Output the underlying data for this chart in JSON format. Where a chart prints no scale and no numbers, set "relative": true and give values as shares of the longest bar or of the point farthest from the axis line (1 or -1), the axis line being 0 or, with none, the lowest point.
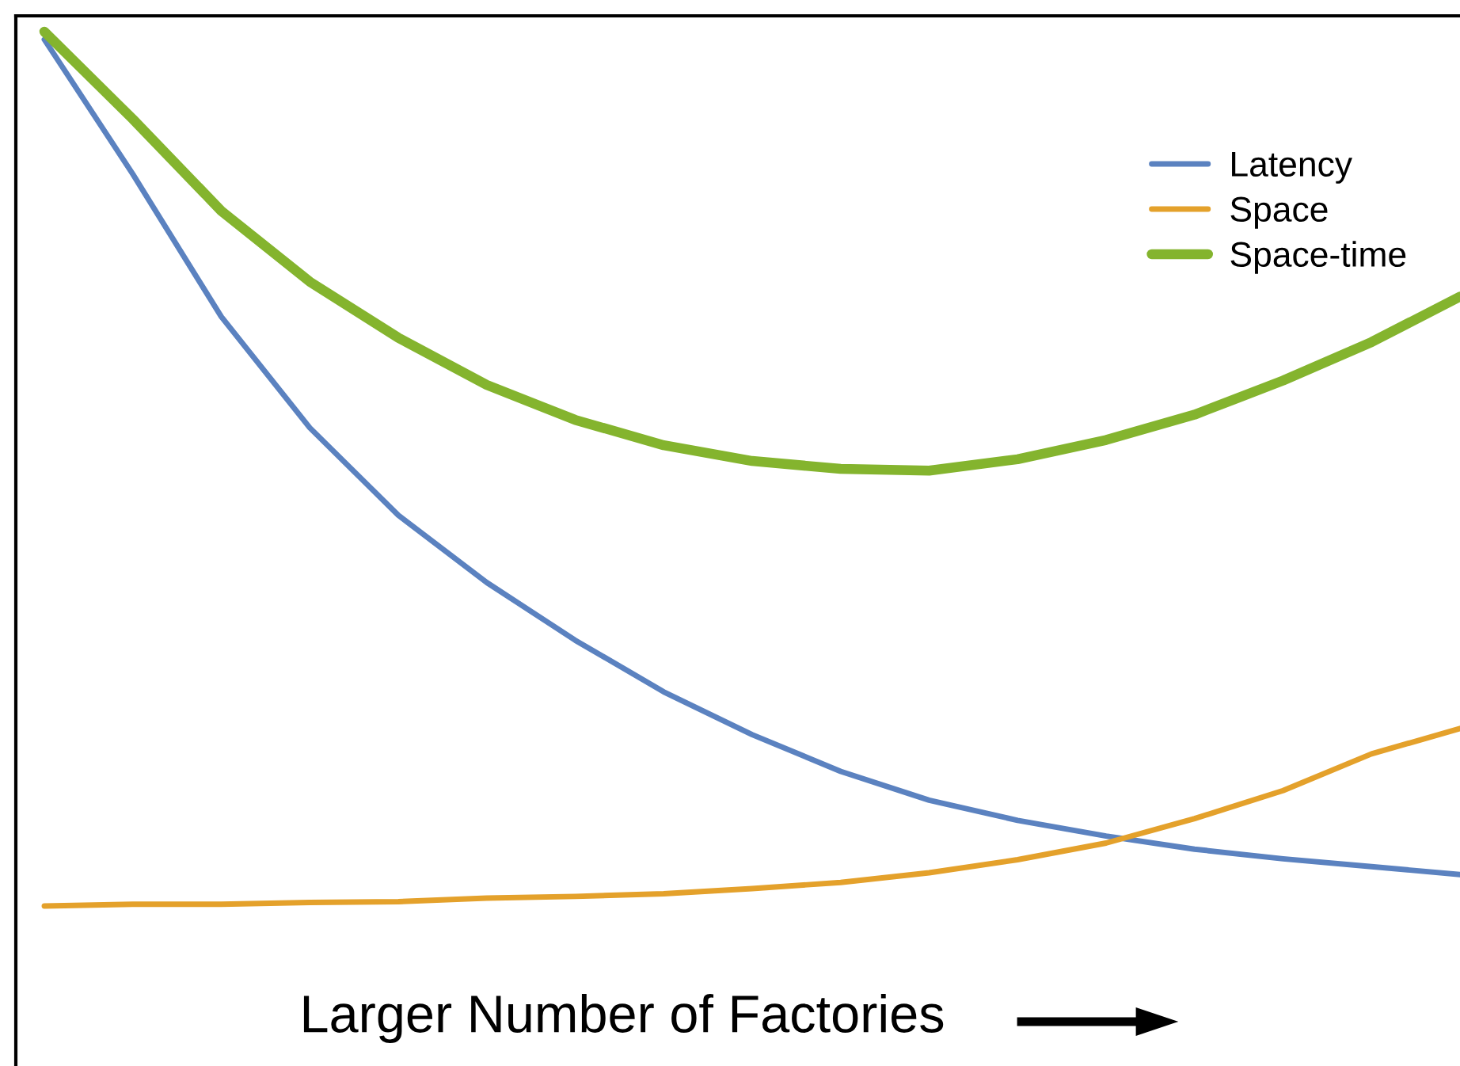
{
  "chart_data": {
    "type": "line",
    "relative": true,
    "xlabel": "Larger Number of Factories",
    "categories": [
      null,
      null,
      null,
      null,
      null,
      null,
      null,
      null,
      null,
      null,
      null,
      null,
      null,
      null,
      null,
      null,
      null
    ],
    "series": [
      {
        "name": "Latency",
        "color": "#5b82c0",
        "values": [
          0.991,
          0.837,
          0.674,
          0.547,
          0.447,
          0.37,
          0.304,
          0.245,
          0.196,
          0.154,
          0.121,
          0.098,
          0.08,
          0.065,
          0.054,
          0.045,
          0.036
        ]
      },
      {
        "name": "Space",
        "color": "#e4a12b",
        "values": [
          0,
          0.002,
          0.002,
          0.004,
          0.005,
          0.009,
          0.011,
          0.014,
          0.02,
          0.027,
          0.038,
          0.053,
          0.072,
          0.1,
          0.132,
          0.174,
          0.203
        ]
      },
      {
        "name": "Space-time",
        "color": "#84b42e",
        "values": [
          1.0,
          0.9,
          0.795,
          0.714,
          0.65,
          0.596,
          0.556,
          0.527,
          0.509,
          0.5,
          0.498,
          0.511,
          0.533,
          0.562,
          0.601,
          0.645,
          0.697
        ]
      }
    ],
    "legend": "top right",
    "grid": false,
    "marker": "none",
    "line_style": "solid"
  }
}
